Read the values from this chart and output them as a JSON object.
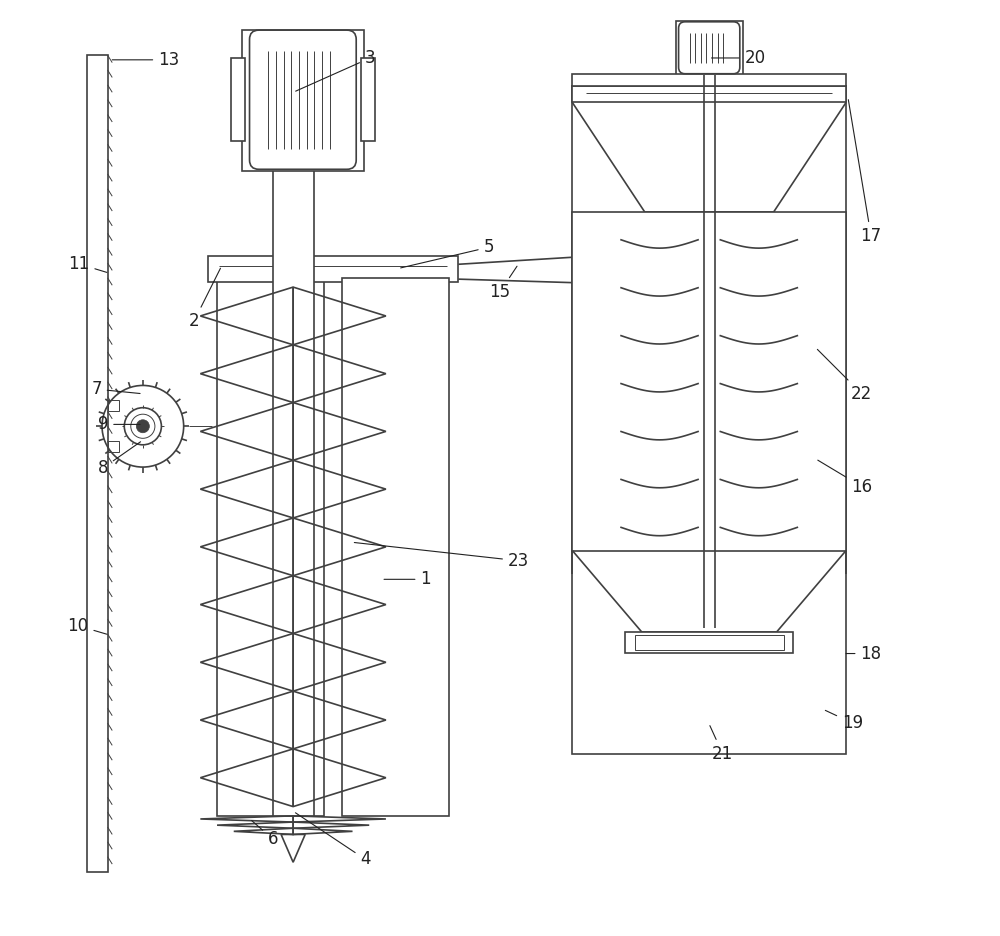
{
  "bg_color": "#ffffff",
  "line_color": "#404040",
  "lw": 1.2,
  "tlw": 0.7,
  "fs": 12
}
